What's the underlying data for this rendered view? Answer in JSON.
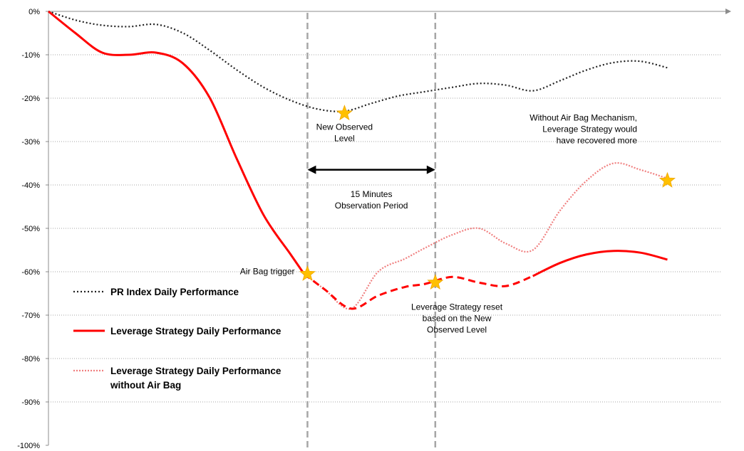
{
  "chart_data": {
    "type": "line",
    "xlabel": "",
    "ylabel": "",
    "ylim": [
      -100,
      0
    ],
    "yticks": [
      0,
      -10,
      -20,
      -30,
      -40,
      -50,
      -60,
      -70,
      -80,
      -90,
      -100
    ],
    "ytick_labels": [
      "0%",
      "-10%",
      "-20%",
      "-30%",
      "-40%",
      "-50%",
      "-60%",
      "-70%",
      "-80%",
      "-90%",
      "-100%"
    ],
    "xlim": [
      0,
      100
    ],
    "grid": true,
    "legend_position": "left",
    "series": [
      {
        "name": "PR Index Daily Performance",
        "color": "#222222",
        "style": "dotted",
        "x": [
          0,
          4,
          8,
          12,
          16,
          20,
          24,
          28,
          32,
          36,
          40,
          44,
          48,
          52,
          56,
          60,
          64,
          68,
          72,
          76,
          80,
          84,
          88,
          92
        ],
        "y": [
          0,
          -2,
          -3.2,
          -3.5,
          -3,
          -5,
          -9,
          -13.5,
          -17.5,
          -20.5,
          -22.5,
          -23,
          -21.2,
          -19.5,
          -18.5,
          -17.5,
          -16.6,
          -17,
          -18.3,
          -16,
          -13.5,
          -11.8,
          -11.5,
          -13
        ]
      },
      {
        "name": "Leverage Strategy Daily Performance",
        "color": "#ff0000",
        "style": "solid",
        "x": [
          0,
          4,
          8,
          12,
          16,
          20,
          24,
          28,
          32,
          36,
          38,
          41,
          45,
          49,
          53,
          56,
          60,
          64,
          68,
          72,
          76,
          80,
          84,
          88,
          92
        ],
        "y": [
          0,
          -5,
          -9.5,
          -10,
          -9.5,
          -12,
          -20,
          -34,
          -47,
          -56,
          -60.5,
          -64,
          -68.5,
          -65.5,
          -63.5,
          -62.8,
          -61.2,
          -62.5,
          -63.3,
          -61,
          -58,
          -56,
          -55.2,
          -55.6,
          -57.2
        ],
        "dashed_from_x": 38,
        "dashed_to_x": 72
      },
      {
        "name": "Leverage Strategy Daily Performance without Air Bag",
        "color": "#f08080",
        "style": "dotted",
        "x": [
          38,
          41,
          45,
          49,
          53,
          56,
          60,
          64,
          68,
          72,
          76,
          80,
          84,
          88,
          92
        ],
        "y": [
          -60.5,
          -64,
          -68.5,
          -60,
          -57,
          -54.5,
          -51.5,
          -50,
          -53.5,
          -55,
          -46,
          -39,
          -35,
          -36.5,
          -38.5
        ]
      }
    ],
    "vertical_markers": [
      {
        "x": 38.5,
        "style": "dashed"
      },
      {
        "x": 57.5,
        "style": "dashed"
      }
    ],
    "arrow": {
      "x_from": 38.5,
      "x_to": 57.5,
      "y": -36.5
    },
    "stars": [
      {
        "x": 44,
        "y": -23.5
      },
      {
        "x": 38.5,
        "y": -60.5
      },
      {
        "x": 57.5,
        "y": -62.5
      },
      {
        "x": 92,
        "y": -39
      }
    ],
    "annotations": [
      {
        "lines": [
          "New Observed",
          "Level"
        ],
        "x": 44,
        "y": -27.3,
        "anchor": "middle"
      },
      {
        "lines": [
          "15 Minutes",
          "Observation Period"
        ],
        "x": 48,
        "y": -42.8,
        "anchor": "middle"
      },
      {
        "lines": [
          "Air Bag trigger"
        ],
        "x": 36.6,
        "y": -60.6,
        "anchor": "end"
      },
      {
        "lines": [
          "Leverage Strategy reset",
          "based on the New",
          "Observed Level"
        ],
        "x": 60.7,
        "y": -68.8,
        "anchor": "middle"
      },
      {
        "lines": [
          "Without Air Bag Mechanism,",
          "Leverage Strategy would",
          "have recovered more"
        ],
        "x": 87.5,
        "y": -25.2,
        "anchor": "end"
      }
    ],
    "legend": [
      {
        "label_lines": [
          "PR Index Daily Performance"
        ],
        "series": 0
      },
      {
        "label_lines": [
          "Leverage Strategy Daily Performance"
        ],
        "series": 1
      },
      {
        "label_lines": [
          "Leverage Strategy Daily Performance",
          "without Air Bag"
        ],
        "series": 2
      }
    ]
  }
}
